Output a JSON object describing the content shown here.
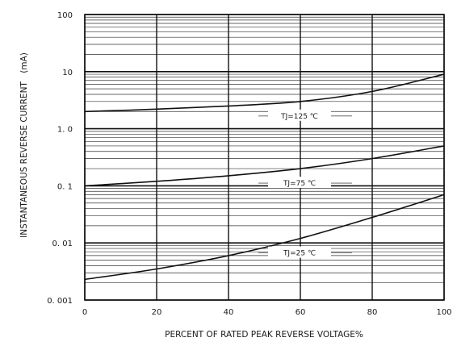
{
  "chart_data": {
    "type": "line",
    "title": "",
    "xlabel": "PERCENT OF RATED PEAK REVERSE VOLTAGE%",
    "ylabel": "INSTANTANEOUS REVERSE CURRENT",
    "yunit": "(mA)",
    "xlim": [
      0,
      100
    ],
    "ylim": [
      0.001,
      100
    ],
    "yscale": "log",
    "grid": true,
    "x_ticks": [
      0,
      20,
      40,
      60,
      80,
      100
    ],
    "x_tick_labels": [
      "0",
      "20",
      "40",
      "60",
      "80",
      "100"
    ],
    "y_ticks": [
      0.001,
      0.01,
      0.1,
      1,
      10,
      100
    ],
    "y_tick_labels": [
      "0. 001",
      "0. 01",
      "0. 1",
      "1. 0",
      "10",
      "100"
    ],
    "series": [
      {
        "name": "TJ=125 ℃",
        "x": [
          0,
          20,
          40,
          60,
          80,
          100
        ],
        "y": [
          2.0,
          2.2,
          2.5,
          3.0,
          4.5,
          9.0
        ],
        "label_at_x": 60
      },
      {
        "name": "TJ=75 ℃",
        "x": [
          0,
          20,
          40,
          60,
          80,
          100
        ],
        "y": [
          0.1,
          0.12,
          0.15,
          0.2,
          0.3,
          0.5
        ],
        "label_at_x": 60
      },
      {
        "name": "TJ=25 ℃",
        "x": [
          0,
          20,
          40,
          60,
          80,
          100
        ],
        "y": [
          0.0023,
          0.0035,
          0.006,
          0.012,
          0.028,
          0.07
        ],
        "label_at_x": 60
      }
    ]
  }
}
